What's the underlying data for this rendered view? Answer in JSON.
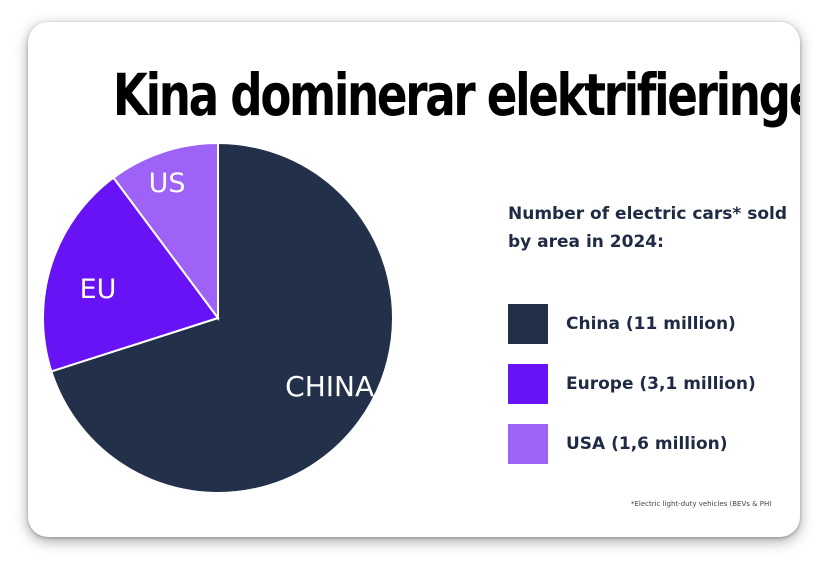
{
  "chart_data": {
    "type": "pie",
    "title": "Kina dominerar elektrifieringen",
    "subtitle": "Number of electric cars* sold by area in 2024:",
    "slices": [
      {
        "label": "CHINA",
        "legend": "China (11 million)",
        "value": 11,
        "color": "#22304a"
      },
      {
        "label": "EU",
        "legend": "Europe (3,1 million)",
        "value": 3.1,
        "color": "#6713f5"
      },
      {
        "label": "US",
        "legend": "USA (1,6 million)",
        "value": 1.6,
        "color": "#9e62f6"
      }
    ],
    "footnote": "*Electric light-duty vehicles (BEVs & PHI",
    "legend_position": "right"
  }
}
